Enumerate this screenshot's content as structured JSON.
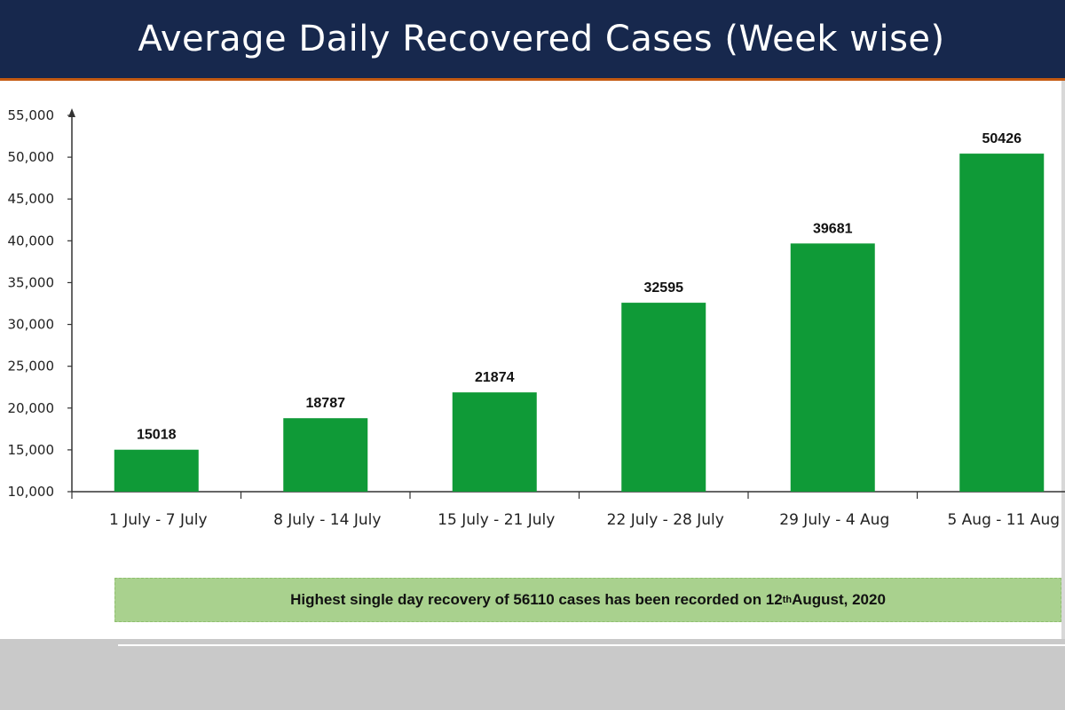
{
  "header": {
    "title": "Average Daily Recovered Cases (Week wise)"
  },
  "colors": {
    "header_bg": "#17284d",
    "bar": "#0f9a37",
    "note_bg": "#a9d18e"
  },
  "chart_data": {
    "type": "bar",
    "title": "Average Daily Recovered Cases (Week wise)",
    "categories": [
      "1 July - 7 July",
      "8 July - 14 July",
      "15 July - 21 July",
      "22 July - 28 July",
      "29 July - 4 Aug",
      "5 Aug - 11 Aug"
    ],
    "values": [
      15018,
      18787,
      21874,
      32595,
      39681,
      50426
    ],
    "data_labels": [
      "15018",
      "18787",
      "21874",
      "32595",
      "39681",
      "50426"
    ],
    "ylim": [
      10000,
      55000
    ],
    "yticks": [
      10000,
      15000,
      20000,
      25000,
      30000,
      35000,
      40000,
      45000,
      50000,
      55000
    ],
    "ytick_labels": [
      "10,000",
      "15,000",
      "20,000",
      "25,000",
      "30,000",
      "35,000",
      "40,000",
      "45,000",
      "50,000",
      "55,000"
    ],
    "xlabel": "",
    "ylabel": "",
    "grid": false
  },
  "note": {
    "before": "Highest single day recovery of 56110 cases has been recorded on 12",
    "sup": "th",
    "after": " August, 2020"
  }
}
